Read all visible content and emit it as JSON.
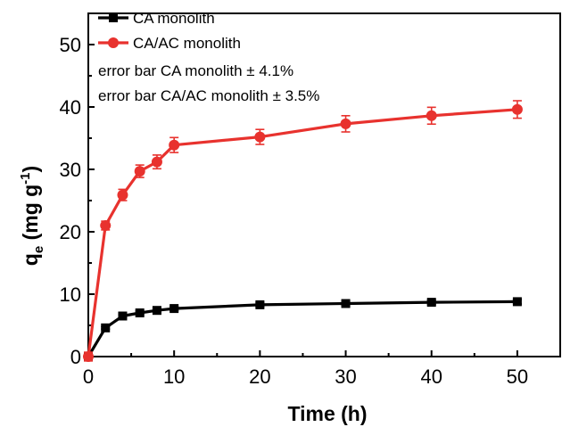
{
  "chart_data": {
    "type": "line",
    "title": "",
    "xlabel": "Time (h)",
    "ylabel": {
      "q": "q",
      "subscript": "e",
      "units": " (mg g",
      "exponent": "-1",
      "close": ")"
    },
    "xlim": [
      0,
      55
    ],
    "ylim": [
      0,
      55
    ],
    "x_ticks": [
      0,
      10,
      20,
      30,
      40,
      50
    ],
    "y_ticks": [
      0,
      10,
      20,
      30,
      40,
      50
    ],
    "grid": false,
    "legend_position": "top-left",
    "x": [
      0,
      2,
      4,
      6,
      8,
      10,
      20,
      30,
      40,
      50
    ],
    "series": [
      {
        "name": "CA monolith",
        "color": "#000000",
        "marker": "square",
        "values": [
          0,
          4.6,
          6.5,
          7.0,
          7.4,
          7.7,
          8.3,
          8.5,
          8.7,
          8.8
        ],
        "error": [
          0.19,
          0.19,
          0.27,
          0.29,
          0.3,
          0.32,
          0.34,
          0.35,
          0.36,
          0.36
        ]
      },
      {
        "name": "CA/AC monolith",
        "color": "#e8322e",
        "marker": "circle",
        "values": [
          0,
          21.0,
          25.9,
          29.7,
          31.2,
          33.9,
          35.2,
          37.3,
          38.6,
          39.6
        ],
        "error": [
          0.7,
          0.7,
          0.9,
          1.0,
          1.1,
          1.2,
          1.2,
          1.3,
          1.35,
          1.4
        ]
      }
    ],
    "annotations": [
      "error bar CA monolith ± 4.1%",
      "error bar CA/AC monolith ± 3.5%"
    ]
  }
}
